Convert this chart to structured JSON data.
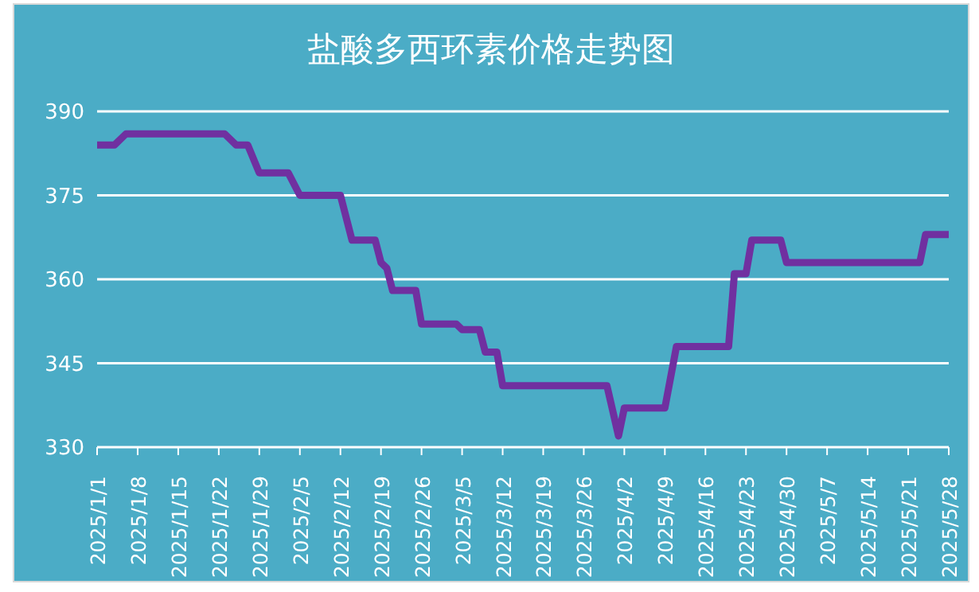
{
  "chart_data": {
    "type": "line",
    "title": "盐酸多西环素价格走势图",
    "x": [
      "2025-01-01",
      "2025-01-04",
      "2025-01-06",
      "2025-01-23",
      "2025-01-25",
      "2025-01-27",
      "2025-01-29",
      "2025-02-03",
      "2025-02-05",
      "2025-02-12",
      "2025-02-14",
      "2025-02-18",
      "2025-02-19",
      "2025-02-20",
      "2025-02-21",
      "2025-02-25",
      "2025-02-26",
      "2025-03-04",
      "2025-03-05",
      "2025-03-08",
      "2025-03-09",
      "2025-03-11",
      "2025-03-12",
      "2025-03-30",
      "2025-04-01",
      "2025-04-02",
      "2025-04-09",
      "2025-04-11",
      "2025-04-20",
      "2025-04-21",
      "2025-04-23",
      "2025-04-24",
      "2025-04-29",
      "2025-04-30",
      "2025-05-23",
      "2025-05-24",
      "2025-05-28"
    ],
    "series": [
      {
        "color": "#7030a0",
        "values": [
          384,
          384,
          386,
          386,
          384,
          384,
          379,
          379,
          375,
          375,
          367,
          367,
          363,
          362,
          358,
          358,
          352,
          352,
          351,
          351,
          347,
          347,
          341,
          341,
          332,
          337,
          337,
          348,
          348,
          361,
          361,
          367,
          367,
          363,
          363,
          368,
          368
        ]
      }
    ],
    "xlim": [
      "2025-01-01",
      "2025-05-28"
    ],
    "xticks": [
      {
        "value": "2025-01-01",
        "label": "2025/1/1"
      },
      {
        "value": "2025-01-08",
        "label": "2025/1/8"
      },
      {
        "value": "2025-01-15",
        "label": "2025/1/15"
      },
      {
        "value": "2025-01-22",
        "label": "2025/1/22"
      },
      {
        "value": "2025-01-29",
        "label": "2025/1/29"
      },
      {
        "value": "2025-02-05",
        "label": "2025/2/5"
      },
      {
        "value": "2025-02-12",
        "label": "2025/2/12"
      },
      {
        "value": "2025-02-19",
        "label": "2025/2/19"
      },
      {
        "value": "2025-02-26",
        "label": "2025/2/26"
      },
      {
        "value": "2025-03-05",
        "label": "2025/3/5"
      },
      {
        "value": "2025-03-12",
        "label": "2025/3/12"
      },
      {
        "value": "2025-03-19",
        "label": "2025/3/19"
      },
      {
        "value": "2025-03-26",
        "label": "2025/3/26"
      },
      {
        "value": "2025-04-02",
        "label": "2025/4/2"
      },
      {
        "value": "2025-04-09",
        "label": "2025/4/9"
      },
      {
        "value": "2025-04-16",
        "label": "2025/4/16"
      },
      {
        "value": "2025-04-23",
        "label": "2025/4/23"
      },
      {
        "value": "2025-04-30",
        "label": "2025/4/30"
      },
      {
        "value": "2025-05-07",
        "label": "2025/5/7"
      },
      {
        "value": "2025-05-14",
        "label": "2025/5/14"
      },
      {
        "value": "2025-05-21",
        "label": "2025/5/21"
      },
      {
        "value": "2025-05-28",
        "label": "2025/5/28"
      }
    ],
    "ylim": [
      330,
      390
    ],
    "yticks": [
      330,
      345,
      360,
      375,
      390
    ],
    "grid": "y",
    "legend": false,
    "marker": "none",
    "line_style": "solid"
  }
}
